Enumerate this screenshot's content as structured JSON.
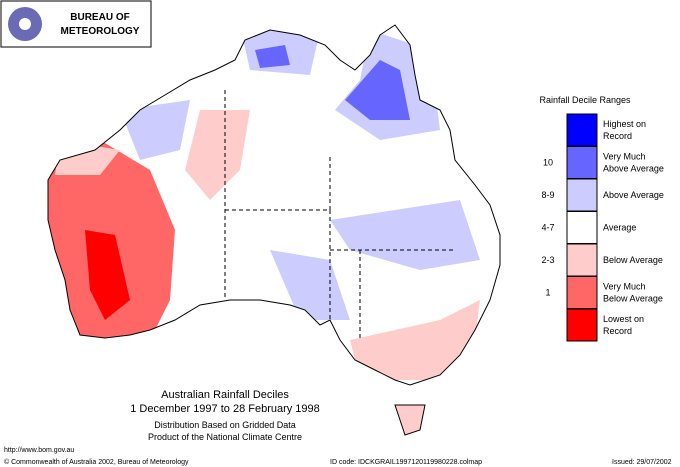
{
  "header": {
    "agency": [
      "BUREAU OF",
      "METEOROLOGY"
    ]
  },
  "legend": {
    "title": "Rainfall Decile Ranges",
    "items": [
      {
        "label": "Highest on Record",
        "color": "#0000ff"
      },
      {
        "range": "10",
        "label": "Very Much Above Average",
        "color": "#6666ff"
      },
      {
        "range": "8-9",
        "label": "Above Average",
        "color": "#ccccff"
      },
      {
        "range": "4-7",
        "label": "Average",
        "color": "#ffffff"
      },
      {
        "range": "2-3",
        "label": "Below Average",
        "color": "#ffcccc"
      },
      {
        "range": "1",
        "label": "Very Much Below Average",
        "color": "#ff6666"
      },
      {
        "label": "Lowest on Record",
        "color": "#ff0000"
      }
    ]
  },
  "caption": {
    "title": "Australian Rainfall Deciles",
    "period": "1 December 1997 to 28 February 1998",
    "note": "Distribution Based on Gridded Data",
    "product": "Product of the National Climate Centre"
  },
  "footer": {
    "url": "http://www.bom.gov.au",
    "copyright": "© Commonwealth of Australia 2002, Bureau of Meteorology",
    "id": "ID code: IDCKGRAIL1997120119980228.colmap",
    "issued": "Issued: 29/07/2002"
  }
}
